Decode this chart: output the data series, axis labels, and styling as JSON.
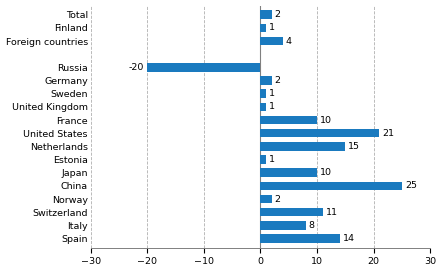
{
  "categories": [
    "Total",
    "Finland",
    "Foreign countries",
    "",
    "Russia",
    "Germany",
    "Sweden",
    "United Kingdom",
    "France",
    "United States",
    "Netherlands",
    "Estonia",
    "Japan",
    "China",
    "Norway",
    "Switzerland",
    "Italy",
    "Spain"
  ],
  "values": [
    2,
    1,
    4,
    null,
    -20,
    2,
    1,
    1,
    10,
    21,
    15,
    1,
    10,
    25,
    2,
    11,
    8,
    14
  ],
  "bar_color": "#1a7abf",
  "xlim": [
    -30,
    30
  ],
  "xticks": [
    -30,
    -20,
    -10,
    0,
    10,
    20,
    30
  ],
  "grid_color": "#b0b0b0",
  "bg_color": "#ffffff",
  "label_fontsize": 6.8,
  "value_fontsize": 6.8,
  "tick_fontsize": 6.8
}
